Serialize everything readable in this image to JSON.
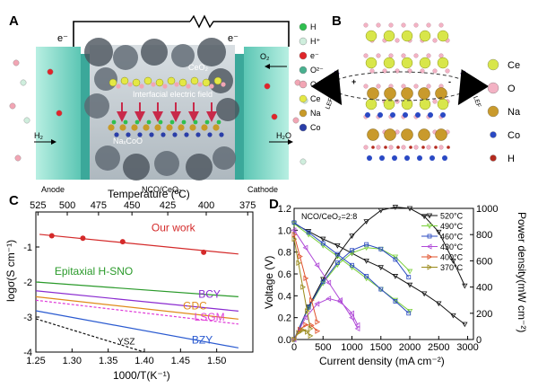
{
  "panels": {
    "a": {
      "label": "A",
      "electrons": [
        "e⁻",
        "e⁻"
      ],
      "anode": "Anode",
      "cathode": "Cathode",
      "middle": "NCO/CeO₂",
      "ceo2": "CeO₂",
      "nacoo": "NaₓCoO",
      "field": "Interfacial electric field",
      "h2": "H₂",
      "h2o": "H₂O",
      "o2": "O₂",
      "legend": [
        {
          "label": "H",
          "color": "#2fbf4f"
        },
        {
          "label": "H⁺",
          "color": "#cfeedd"
        },
        {
          "label": "e⁻",
          "color": "#e0252a"
        },
        {
          "label": "O²⁻",
          "color": "#49b08f"
        },
        {
          "label": "O",
          "color": "#f2a5b4"
        },
        {
          "label": "Ce",
          "color": "#e4e845"
        },
        {
          "label": "Na",
          "color": "#c89a28"
        },
        {
          "label": "Co",
          "color": "#2a3ea8"
        }
      ]
    },
    "b": {
      "label": "B",
      "lef": "LEF",
      "plus": "+",
      "minus": "-",
      "legend": [
        {
          "label": "Ce",
          "color": "#d8e64a"
        },
        {
          "label": "O",
          "color": "#f3b2c4"
        },
        {
          "label": "Na",
          "color": "#c99a2c"
        },
        {
          "label": "Co",
          "color": "#2a49c4"
        },
        {
          "label": "H",
          "color": "#b42a1e"
        }
      ]
    }
  },
  "chart_data": [
    {
      "panel": "C",
      "type": "line",
      "xlabel": "1000/T(K⁻¹)",
      "ylabel": "logσ(S cm⁻¹)",
      "top_axis_label": "Temperature (ºC)",
      "xlim": [
        1.25,
        1.55
      ],
      "ylim": [
        -4,
        0
      ],
      "x_ticks": [
        1.25,
        1.3,
        1.35,
        1.4,
        1.45,
        1.5
      ],
      "x_tick_labels": [
        "1.25",
        "1.30",
        "1.35",
        "1.40",
        "1.45",
        "1.50"
      ],
      "y_ticks": [
        -1,
        -2,
        -3,
        -4
      ],
      "y_tick_labels": [
        "-1",
        "-2",
        "-3",
        "-4"
      ],
      "top_ticks": [
        525,
        500,
        475,
        450,
        425,
        400,
        375
      ],
      "top_tick_labels": [
        "525",
        "500",
        "475",
        "450",
        "425",
        "400",
        "375"
      ],
      "series": [
        {
          "name": "Our work",
          "color": "#d42a2a",
          "style": "solid",
          "markers": true,
          "x": [
            1.272,
            1.315,
            1.37,
            1.482
          ],
          "y": [
            -0.68,
            -0.75,
            -0.85,
            -1.15
          ],
          "line_x": [
            1.255,
            1.53
          ],
          "line_y": [
            -0.64,
            -1.2
          ]
        },
        {
          "name": "Epitaxial H-SNO",
          "color": "#2a9a2a",
          "style": "solid",
          "x": [
            1.25,
            1.53
          ],
          "y": [
            -2.0,
            -2.42
          ]
        },
        {
          "name": "BCY",
          "color": "#8a2ad0",
          "style": "solid",
          "x": [
            1.25,
            1.53
          ],
          "y": [
            -2.25,
            -2.83
          ]
        },
        {
          "name": "GDC",
          "color": "#e08a1a",
          "style": "solid",
          "x": [
            1.25,
            1.53
          ],
          "y": [
            -2.42,
            -3.06
          ]
        },
        {
          "name": "LSGM",
          "color": "#e03ad8",
          "style": "dashed",
          "x": [
            1.25,
            1.53
          ],
          "y": [
            -2.52,
            -3.2
          ]
        },
        {
          "name": "BZY",
          "color": "#2a5ad0",
          "style": "solid",
          "x": [
            1.25,
            1.53
          ],
          "y": [
            -2.82,
            -3.88
          ]
        },
        {
          "name": "YSZ",
          "color": "#111111",
          "style": "dashed",
          "x": [
            1.25,
            1.4
          ],
          "y": [
            -3.05,
            -4.0
          ]
        }
      ]
    },
    {
      "panel": "D",
      "type": "line",
      "annotation": "NCO/CeO₂=2:8",
      "xlabel": "Current density (mA cm⁻²)",
      "ylabel": "Voltage (V)",
      "y2label": "Power density(mW cm⁻²)",
      "xlim": [
        0,
        3100
      ],
      "ylim": [
        0,
        1.2
      ],
      "y2lim": [
        0,
        1000
      ],
      "x_ticks": [
        0,
        500,
        1000,
        1500,
        2000,
        2500,
        3000
      ],
      "y_ticks": [
        0,
        0.2,
        0.4,
        0.6,
        0.8,
        1.0,
        1.2
      ],
      "y_tick_labels": [
        "0.0",
        "0.2",
        "0.4",
        "0.6",
        "0.8",
        "1.0",
        "1.2"
      ],
      "y2_ticks": [
        0,
        200,
        400,
        600,
        800,
        1000
      ],
      "series": [
        {
          "name": "520°C",
          "color": "#111111",
          "marker": "triangle-down",
          "iv_x": [
            0,
            250,
            500,
            750,
            1000,
            1250,
            1500,
            1750,
            2000,
            2250,
            2500,
            2750,
            2950
          ],
          "iv_y": [
            1.06,
            0.99,
            0.92,
            0.86,
            0.79,
            0.72,
            0.66,
            0.58,
            0.5,
            0.42,
            0.33,
            0.22,
            0.14
          ],
          "p_x": [
            0,
            250,
            500,
            750,
            1000,
            1250,
            1500,
            1750,
            2000,
            2250,
            2500,
            2750,
            2950
          ],
          "p_y": [
            0,
            250,
            460,
            640,
            790,
            900,
            985,
            1010,
            1000,
            940,
            820,
            600,
            410
          ]
        },
        {
          "name": "490°C",
          "color": "#7ad03a",
          "marker": "triangle-down",
          "iv_x": [
            0,
            250,
            500,
            750,
            1000,
            1250,
            1500,
            1750,
            2000
          ],
          "iv_y": [
            1.06,
            0.96,
            0.86,
            0.76,
            0.66,
            0.56,
            0.46,
            0.36,
            0.26
          ],
          "p_x": [
            0,
            250,
            500,
            750,
            1000,
            1250,
            1500,
            1750,
            2000
          ],
          "p_y": [
            0,
            240,
            430,
            570,
            660,
            700,
            690,
            630,
            520
          ]
        },
        {
          "name": "460°C",
          "color": "#2a4ac0",
          "marker": "square",
          "iv_x": [
            0,
            250,
            500,
            750,
            1000,
            1250,
            1500,
            1750,
            1980
          ],
          "iv_y": [
            1.07,
            0.98,
            0.88,
            0.78,
            0.68,
            0.58,
            0.46,
            0.35,
            0.24
          ],
          "p_x": [
            0,
            250,
            500,
            750,
            1000,
            1250,
            1500,
            1750,
            1980
          ],
          "p_y": [
            0,
            245,
            440,
            585,
            680,
            725,
            690,
            610,
            475
          ]
        },
        {
          "name": "430°C",
          "color": "#b04ad8",
          "marker": "triangle-left",
          "iv_x": [
            0,
            200,
            400,
            600,
            800,
            1000,
            1100
          ],
          "iv_y": [
            1.0,
            0.84,
            0.68,
            0.52,
            0.36,
            0.2,
            0.1
          ],
          "p_x": [
            0,
            200,
            400,
            600,
            800,
            1000,
            1100
          ],
          "p_y": [
            0,
            168,
            272,
            312,
            288,
            200,
            110
          ]
        },
        {
          "name": "400°C",
          "color": "#e0502a",
          "marker": "triangle-right",
          "iv_x": [
            0,
            100,
            200,
            300,
            400
          ],
          "iv_y": [
            0.96,
            0.76,
            0.56,
            0.36,
            0.16
          ],
          "p_x": [
            0,
            100,
            200,
            300,
            400
          ],
          "p_y": [
            0,
            76,
            112,
            108,
            64
          ]
        },
        {
          "name": "370°C",
          "color": "#9a8a1a",
          "marker": "triangle-right",
          "iv_x": [
            0,
            75,
            150,
            225,
            280
          ],
          "iv_y": [
            0.92,
            0.7,
            0.48,
            0.26,
            0.1
          ],
          "p_x": [
            0,
            75,
            150,
            225,
            280
          ],
          "p_y": [
            0,
            52,
            72,
            58,
            28
          ]
        }
      ]
    }
  ]
}
